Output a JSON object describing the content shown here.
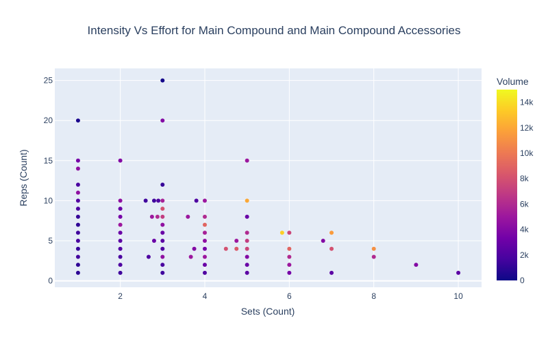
{
  "chart_data": {
    "type": "scatter",
    "title": "Intensity Vs Effort for Main Compound and Main Compound Accessories",
    "xlabel": "Sets (Count)",
    "ylabel": "Reps (Count)",
    "xlim": [
      0.45,
      10.55
    ],
    "ylim": [
      -0.8,
      26.5
    ],
    "xticks": [
      2,
      4,
      6,
      8,
      10
    ],
    "yticks": [
      0,
      5,
      10,
      15,
      20,
      25
    ],
    "grid": true,
    "colorbar": {
      "title": "Volume",
      "min": 0,
      "max": 15000,
      "ticks": [
        0,
        2000,
        4000,
        6000,
        8000,
        10000,
        12000,
        14000
      ],
      "tick_labels": [
        "0",
        "2k",
        "4k",
        "6k",
        "8k",
        "10k",
        "12k",
        "14k"
      ],
      "colorscale": [
        "#0d0887",
        "#46039f",
        "#7201a8",
        "#9c179e",
        "#bd3786",
        "#d8576b",
        "#ed7953",
        "#fb9f3a",
        "#fdca26",
        "#f0f921"
      ]
    },
    "points": [
      {
        "x": 1,
        "y": 20,
        "v": 400
      },
      {
        "x": 1,
        "y": 15,
        "v": 3500
      },
      {
        "x": 1,
        "y": 14,
        "v": 4500
      },
      {
        "x": 1,
        "y": 12,
        "v": 1800
      },
      {
        "x": 1,
        "y": 11,
        "v": 4500
      },
      {
        "x": 1,
        "y": 10,
        "v": 2200
      },
      {
        "x": 1,
        "y": 9,
        "v": 2000
      },
      {
        "x": 1,
        "y": 8,
        "v": 1200
      },
      {
        "x": 1,
        "y": 7,
        "v": 1000
      },
      {
        "x": 1,
        "y": 6,
        "v": 1500
      },
      {
        "x": 1,
        "y": 5,
        "v": 1800
      },
      {
        "x": 1,
        "y": 4,
        "v": 1300
      },
      {
        "x": 1,
        "y": 3,
        "v": 1600
      },
      {
        "x": 1,
        "y": 2,
        "v": 1000
      },
      {
        "x": 1,
        "y": 1,
        "v": 900
      },
      {
        "x": 2,
        "y": 15,
        "v": 4000
      },
      {
        "x": 2,
        "y": 10,
        "v": 4500
      },
      {
        "x": 2,
        "y": 9,
        "v": 3000
      },
      {
        "x": 2,
        "y": 8,
        "v": 3500
      },
      {
        "x": 2,
        "y": 7,
        "v": 5000
      },
      {
        "x": 2,
        "y": 6,
        "v": 3000
      },
      {
        "x": 2,
        "y": 5,
        "v": 2500
      },
      {
        "x": 2,
        "y": 4,
        "v": 2200
      },
      {
        "x": 2,
        "y": 3,
        "v": 1800
      },
      {
        "x": 2,
        "y": 2,
        "v": 2000
      },
      {
        "x": 2,
        "y": 1,
        "v": 1500
      },
      {
        "x": 2.6,
        "y": 10,
        "v": 1500
      },
      {
        "x": 2.67,
        "y": 3,
        "v": 2000
      },
      {
        "x": 2.75,
        "y": 8,
        "v": 5000
      },
      {
        "x": 2.8,
        "y": 10,
        "v": 1500
      },
      {
        "x": 2.8,
        "y": 5,
        "v": 3000
      },
      {
        "x": 2.88,
        "y": 8,
        "v": 6000
      },
      {
        "x": 2.9,
        "y": 10,
        "v": 2000
      },
      {
        "x": 3,
        "y": 25,
        "v": 200
      },
      {
        "x": 3,
        "y": 20,
        "v": 4000
      },
      {
        "x": 3,
        "y": 12,
        "v": 1200
      },
      {
        "x": 3,
        "y": 10,
        "v": 5500
      },
      {
        "x": 3,
        "y": 9,
        "v": 8000
      },
      {
        "x": 3,
        "y": 8,
        "v": 7000
      },
      {
        "x": 3,
        "y": 7,
        "v": 4500
      },
      {
        "x": 3,
        "y": 6,
        "v": 3000
      },
      {
        "x": 3,
        "y": 5,
        "v": 2500
      },
      {
        "x": 3,
        "y": 4,
        "v": 2000
      },
      {
        "x": 3,
        "y": 3,
        "v": 4500
      },
      {
        "x": 3,
        "y": 2,
        "v": 1800
      },
      {
        "x": 3,
        "y": 1,
        "v": 1500
      },
      {
        "x": 3.6,
        "y": 8,
        "v": 5000
      },
      {
        "x": 3.67,
        "y": 3,
        "v": 5000
      },
      {
        "x": 3.75,
        "y": 4,
        "v": 4000
      },
      {
        "x": 3.8,
        "y": 10,
        "v": 2000
      },
      {
        "x": 4,
        "y": 10,
        "v": 5000
      },
      {
        "x": 4,
        "y": 8,
        "v": 6000
      },
      {
        "x": 4,
        "y": 7,
        "v": 9000
      },
      {
        "x": 4,
        "y": 6,
        "v": 5500
      },
      {
        "x": 4,
        "y": 5,
        "v": 4500
      },
      {
        "x": 4,
        "y": 4,
        "v": 3500
      },
      {
        "x": 4,
        "y": 3,
        "v": 5000
      },
      {
        "x": 4,
        "y": 2,
        "v": 3000
      },
      {
        "x": 4,
        "y": 1,
        "v": 2000
      },
      {
        "x": 4.5,
        "y": 4,
        "v": 8000
      },
      {
        "x": 4.75,
        "y": 5,
        "v": 5000
      },
      {
        "x": 4.75,
        "y": 4,
        "v": 8500
      },
      {
        "x": 5,
        "y": 15,
        "v": 5000
      },
      {
        "x": 5,
        "y": 10,
        "v": 12000
      },
      {
        "x": 5,
        "y": 8,
        "v": 3000
      },
      {
        "x": 5,
        "y": 6,
        "v": 6000
      },
      {
        "x": 5,
        "y": 5,
        "v": 7000
      },
      {
        "x": 5,
        "y": 4,
        "v": 7500
      },
      {
        "x": 5,
        "y": 3,
        "v": 4000
      },
      {
        "x": 5,
        "y": 2,
        "v": 3000
      },
      {
        "x": 5,
        "y": 1,
        "v": 2500
      },
      {
        "x": 5.83,
        "y": 6,
        "v": 13500
      },
      {
        "x": 6,
        "y": 6,
        "v": 7500
      },
      {
        "x": 6,
        "y": 4,
        "v": 9000
      },
      {
        "x": 6,
        "y": 3,
        "v": 6000
      },
      {
        "x": 6,
        "y": 2,
        "v": 5000
      },
      {
        "x": 6,
        "y": 1,
        "v": 3500
      },
      {
        "x": 6.8,
        "y": 5,
        "v": 4000
      },
      {
        "x": 7,
        "y": 6,
        "v": 11500
      },
      {
        "x": 7,
        "y": 4,
        "v": 8000
      },
      {
        "x": 7,
        "y": 1,
        "v": 2500
      },
      {
        "x": 8,
        "y": 4,
        "v": 11000
      },
      {
        "x": 8,
        "y": 3,
        "v": 6000
      },
      {
        "x": 9,
        "y": 2,
        "v": 4000
      },
      {
        "x": 10,
        "y": 1,
        "v": 2500
      }
    ]
  }
}
